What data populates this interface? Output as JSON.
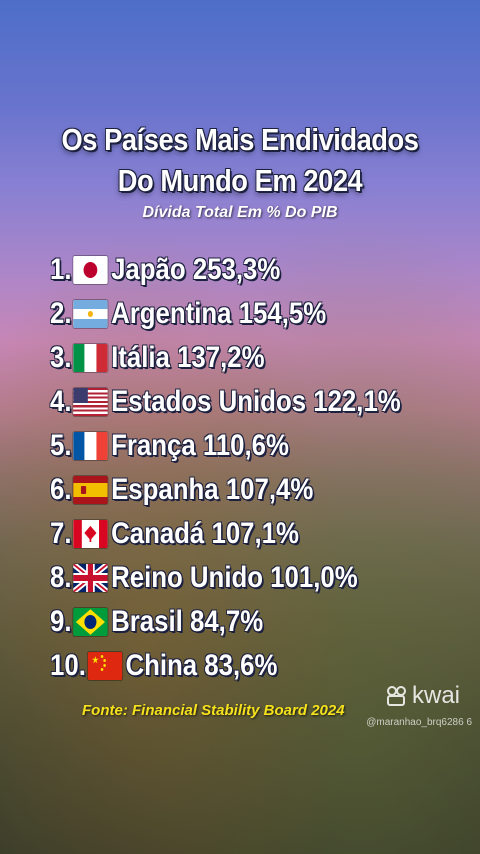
{
  "header": {
    "title_line1": "Os Países Mais Endividados",
    "title_line2": "Do Mundo Em 2024",
    "subtitle": "Dívida Total Em % Do PIB"
  },
  "ranking": [
    {
      "rank": "1.",
      "country": "Japão",
      "value": "253,3%",
      "flag_icon": "japan-flag-icon"
    },
    {
      "rank": "2.",
      "country": "Argentina",
      "value": "154,5%",
      "flag_icon": "argentina-flag-icon"
    },
    {
      "rank": "3.",
      "country": "Itália",
      "value": "137,2%",
      "flag_icon": "italy-flag-icon"
    },
    {
      "rank": "4.",
      "country": "Estados Unidos",
      "value": "122,1%",
      "flag_icon": "usa-flag-icon"
    },
    {
      "rank": "5.",
      "country": "França",
      "value": "110,6%",
      "flag_icon": "france-flag-icon"
    },
    {
      "rank": "6.",
      "country": "Espanha",
      "value": "107,4%",
      "flag_icon": "spain-flag-icon"
    },
    {
      "rank": "7.",
      "country": "Canadá",
      "value": "107,1%",
      "flag_icon": "canada-flag-icon"
    },
    {
      "rank": "8.",
      "country": "Reino Unido",
      "value": "101,0%",
      "flag_icon": "uk-flag-icon"
    },
    {
      "rank": "9.",
      "country": "Brasil",
      "value": "84,7%",
      "flag_icon": "brazil-flag-icon"
    },
    {
      "rank": "10.",
      "country": "China",
      "value": "83,6%",
      "flag_icon": "china-flag-icon"
    }
  ],
  "footer": {
    "source": "Fonte: Financial Stability Board 2024",
    "brand": "kwai",
    "brand_icon": "kwai-logo-icon",
    "handle": "@maranhao_brq6286 6"
  },
  "colors": {
    "title_text": "#ffffff",
    "outline": "#1d2140",
    "source_text": "#f6e21c"
  }
}
